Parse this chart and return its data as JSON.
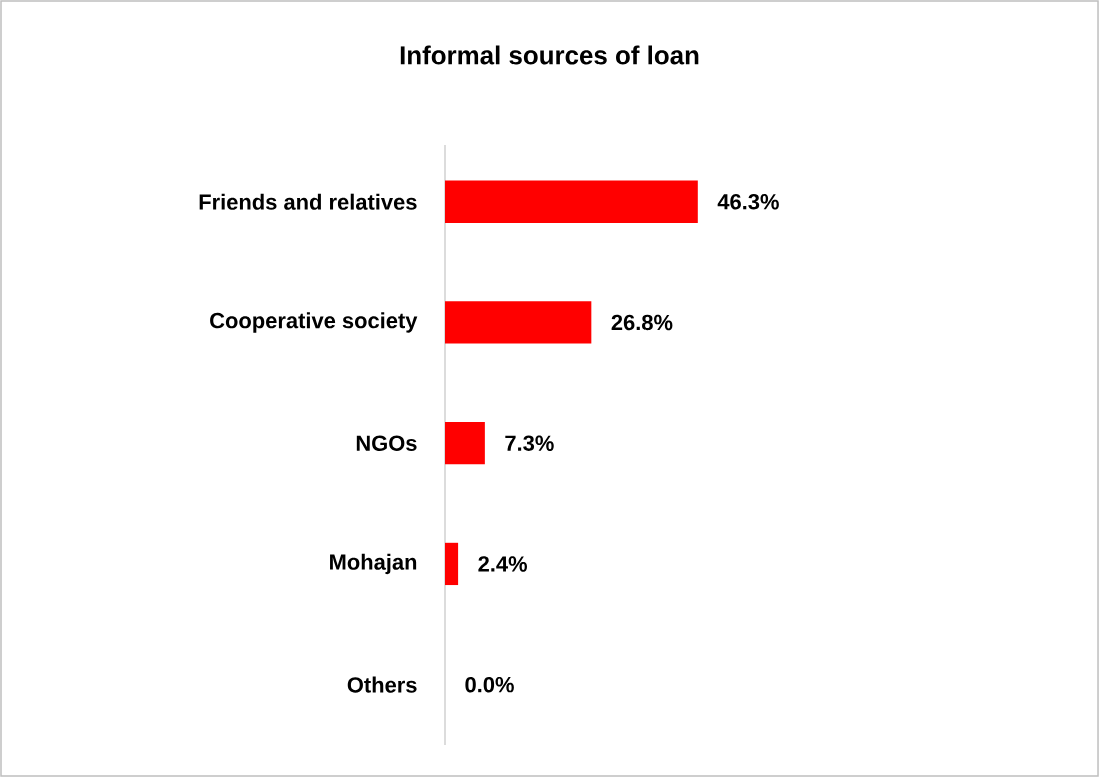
{
  "chart_data": {
    "type": "bar",
    "orientation": "horizontal",
    "title": "Informal sources of loan",
    "categories": [
      "Friends and relatives",
      "Cooperative society",
      "NGOs",
      "Mohajan",
      "Others"
    ],
    "values": [
      46.3,
      26.8,
      7.3,
      2.4,
      0.0
    ],
    "value_labels": [
      "46.3%",
      "26.8%",
      "7.3%",
      "2.4%",
      "0.0%"
    ],
    "color": "#ff0000"
  }
}
